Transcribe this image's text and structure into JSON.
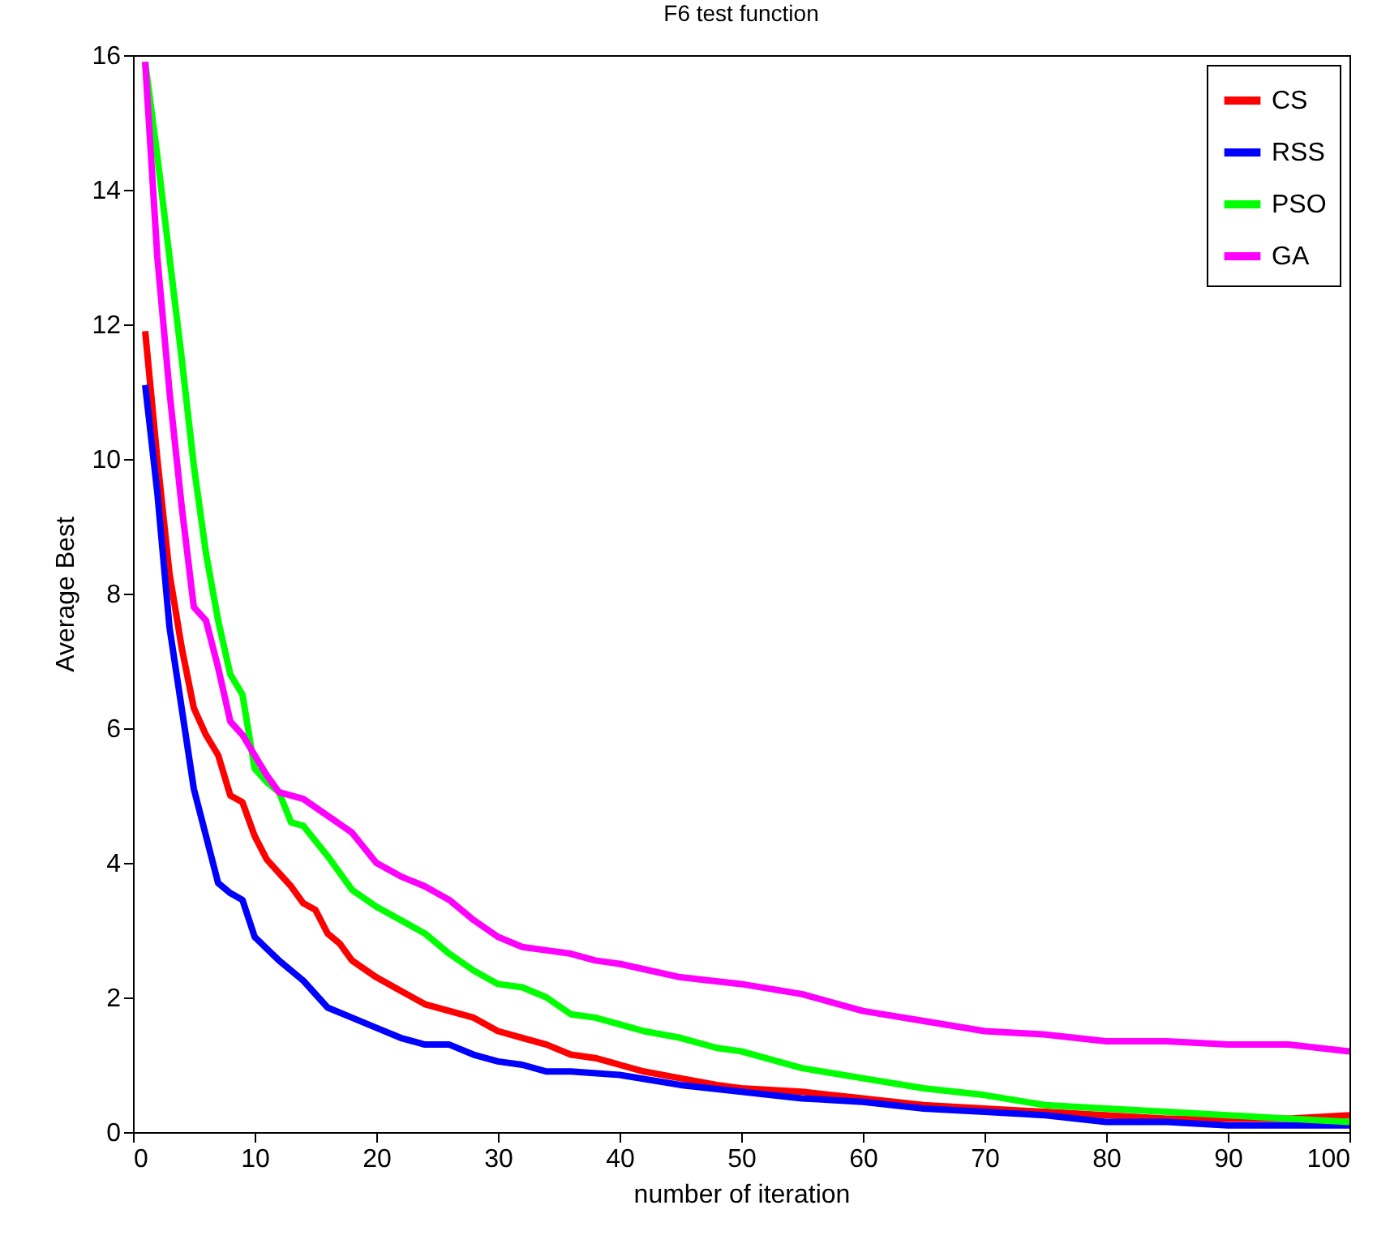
{
  "chart_data": {
    "type": "line",
    "title": "F6 test function",
    "xlabel": "number of iteration",
    "ylabel": "Average Best",
    "xlim": [
      0,
      100
    ],
    "xticks": [
      0,
      10,
      20,
      30,
      40,
      50,
      60,
      70,
      80,
      90,
      100
    ],
    "ylim": [
      0,
      16
    ],
    "yticks": [
      0,
      2,
      4,
      6,
      8,
      10,
      12,
      14,
      16
    ],
    "grid": false,
    "legend": "top right",
    "marker": "none",
    "line_style": "solid",
    "series": [
      {
        "name": "CS",
        "color": "#ff0000",
        "x": [
          1,
          2,
          3,
          4,
          5,
          6,
          7,
          8,
          9,
          10,
          11,
          12,
          13,
          14,
          15,
          16,
          17,
          18,
          20,
          22,
          24,
          26,
          28,
          30,
          32,
          34,
          36,
          38,
          40,
          42,
          45,
          48,
          50,
          55,
          60,
          65,
          70,
          75,
          80,
          85,
          90,
          95,
          100
        ],
        "values": [
          11.9,
          10,
          8.3,
          7.2,
          6.3,
          5.9,
          5.6,
          5.0,
          4.9,
          4.4,
          4.05,
          3.85,
          3.65,
          3.4,
          3.3,
          2.95,
          2.8,
          2.55,
          2.3,
          2.1,
          1.9,
          1.8,
          1.7,
          1.5,
          1.4,
          1.3,
          1.15,
          1.1,
          1.0,
          0.9,
          0.8,
          0.7,
          0.65,
          0.6,
          0.5,
          0.4,
          0.35,
          0.3,
          0.25,
          0.2,
          0.2,
          0.2,
          0.25
        ]
      },
      {
        "name": "RSS",
        "color": "#0000ff",
        "x": [
          1,
          2,
          3,
          4,
          5,
          6,
          7,
          8,
          9,
          10,
          12,
          14,
          16,
          18,
          20,
          22,
          24,
          26,
          28,
          30,
          32,
          34,
          36,
          40,
          45,
          50,
          55,
          60,
          65,
          70,
          75,
          80,
          85,
          90,
          95,
          100
        ],
        "values": [
          11.1,
          9.5,
          7.5,
          6.3,
          5.1,
          4.4,
          3.7,
          3.55,
          3.45,
          2.9,
          2.55,
          2.25,
          1.85,
          1.7,
          1.55,
          1.4,
          1.3,
          1.3,
          1.15,
          1.05,
          1.0,
          0.9,
          0.9,
          0.85,
          0.7,
          0.6,
          0.5,
          0.45,
          0.35,
          0.3,
          0.25,
          0.15,
          0.15,
          0.1,
          0.1,
          0.1
        ]
      },
      {
        "name": "PSO",
        "color": "#00ff00",
        "x": [
          1,
          2,
          3,
          4,
          5,
          6,
          7,
          8,
          9,
          10,
          11,
          12,
          13,
          14,
          16,
          18,
          20,
          22,
          24,
          26,
          28,
          30,
          32,
          34,
          36,
          38,
          40,
          42,
          45,
          48,
          50,
          55,
          60,
          65,
          70,
          75,
          80,
          85,
          90,
          95,
          100
        ],
        "values": [
          15.9,
          14.5,
          13,
          11.5,
          9.9,
          8.6,
          7.6,
          6.8,
          6.5,
          5.4,
          5.2,
          5.05,
          4.6,
          4.55,
          4.1,
          3.6,
          3.35,
          3.15,
          2.95,
          2.65,
          2.4,
          2.2,
          2.15,
          2.0,
          1.75,
          1.7,
          1.6,
          1.5,
          1.4,
          1.25,
          1.2,
          0.95,
          0.8,
          0.65,
          0.55,
          0.4,
          0.35,
          0.3,
          0.25,
          0.2,
          0.15
        ]
      },
      {
        "name": "GA",
        "color": "#ff00ff",
        "x": [
          1,
          2,
          3,
          4,
          5,
          6,
          7,
          8,
          9,
          10,
          11,
          12,
          14,
          16,
          18,
          20,
          22,
          24,
          26,
          28,
          30,
          32,
          34,
          36,
          38,
          40,
          45,
          50,
          55,
          60,
          65,
          70,
          75,
          80,
          85,
          90,
          95,
          100
        ],
        "values": [
          15.9,
          13,
          11,
          9.3,
          7.8,
          7.6,
          6.9,
          6.1,
          5.9,
          5.6,
          5.3,
          5.05,
          4.95,
          4.7,
          4.45,
          4.0,
          3.8,
          3.65,
          3.45,
          3.15,
          2.9,
          2.75,
          2.7,
          2.65,
          2.55,
          2.5,
          2.3,
          2.2,
          2.05,
          1.8,
          1.65,
          1.5,
          1.45,
          1.35,
          1.35,
          1.3,
          1.3,
          1.2
        ]
      }
    ]
  }
}
